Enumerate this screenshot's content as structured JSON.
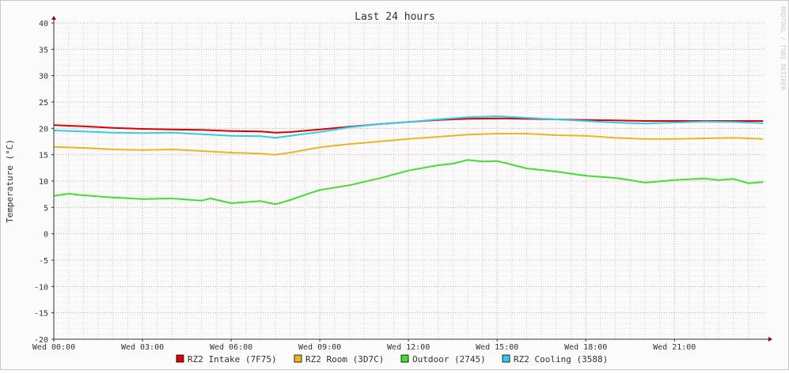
{
  "chart_data": {
    "type": "line",
    "title": "Last 24 hours",
    "ylabel": "Temperature (°C)",
    "watermark": "RRDTOOL / TOBI OETIKER",
    "ylim": [
      -20,
      40
    ],
    "yticks": [
      -20,
      -15,
      -10,
      -5,
      0,
      5,
      10,
      15,
      20,
      25,
      30,
      35,
      40
    ],
    "y_minor_step": 1,
    "xlim_hours": [
      0,
      24.1
    ],
    "xticks": [
      {
        "hour": 0,
        "label": "Wed 00:00"
      },
      {
        "hour": 3,
        "label": "Wed 03:00"
      },
      {
        "hour": 6,
        "label": "Wed 06:00"
      },
      {
        "hour": 9,
        "label": "Wed 09:00"
      },
      {
        "hour": 12,
        "label": "Wed 12:00"
      },
      {
        "hour": 15,
        "label": "Wed 15:00"
      },
      {
        "hour": 18,
        "label": "Wed 18:00"
      },
      {
        "hour": 21,
        "label": "Wed 21:00"
      }
    ],
    "x_minor_step_hours": 0.5,
    "grid": true,
    "legend_position": "bottom",
    "series": [
      {
        "name": "RZ2 Intake (7F75)",
        "color": "#dd0000",
        "x": [
          0,
          1,
          2,
          3,
          4,
          5,
          6,
          7,
          7.5,
          8,
          9,
          10,
          11,
          12,
          13,
          14,
          15,
          16,
          17,
          18,
          19,
          20,
          21,
          22,
          23,
          24
        ],
        "values": [
          20.6,
          20.4,
          20.1,
          19.9,
          19.8,
          19.7,
          19.5,
          19.4,
          19.2,
          19.3,
          19.8,
          20.3,
          20.8,
          21.2,
          21.6,
          21.8,
          21.9,
          21.8,
          21.7,
          21.6,
          21.5,
          21.4,
          21.4,
          21.4,
          21.4,
          21.4
        ]
      },
      {
        "name": "RZ2 Room (3D7C)",
        "color": "#e8b820",
        "x": [
          0,
          1,
          2,
          3,
          4,
          5,
          6,
          7,
          7.5,
          8,
          9,
          10,
          11,
          12,
          13,
          14,
          15,
          16,
          17,
          18,
          19,
          20,
          21,
          22,
          23,
          24
        ],
        "values": [
          16.5,
          16.3,
          16.0,
          15.9,
          16.0,
          15.7,
          15.4,
          15.2,
          15.0,
          15.4,
          16.4,
          17.0,
          17.5,
          18.0,
          18.4,
          18.8,
          19.0,
          19.0,
          18.7,
          18.6,
          18.2,
          18.0,
          18.0,
          18.1,
          18.2,
          18.0
        ]
      },
      {
        "name": "Outdoor (2745)",
        "color": "#44dd33",
        "x": [
          0,
          0.5,
          1,
          2,
          3,
          4,
          5,
          5.3,
          6,
          7,
          7.5,
          8,
          8.5,
          9,
          10,
          11,
          12,
          13,
          13.5,
          14,
          14.5,
          15,
          15.3,
          16,
          17,
          18,
          19,
          19.5,
          20,
          21,
          22,
          22.5,
          23,
          23.5,
          24
        ],
        "values": [
          7.2,
          7.6,
          7.3,
          6.9,
          6.6,
          6.7,
          6.3,
          6.7,
          5.8,
          6.2,
          5.6,
          6.4,
          7.4,
          8.3,
          9.2,
          10.5,
          12.0,
          13.0,
          13.3,
          14.0,
          13.7,
          13.8,
          13.4,
          12.4,
          11.8,
          11.0,
          10.6,
          10.2,
          9.7,
          10.2,
          10.5,
          10.2,
          10.4,
          9.6,
          9.8
        ]
      },
      {
        "name": "RZ2 Cooling (3588)",
        "color": "#33ccee",
        "x": [
          0,
          1,
          2,
          3,
          4,
          5,
          6,
          7,
          7.5,
          8,
          9,
          10,
          11,
          12,
          13,
          14,
          15,
          16,
          17,
          18,
          19,
          20,
          21,
          22,
          23,
          24
        ],
        "values": [
          19.6,
          19.4,
          19.2,
          19.1,
          19.2,
          18.9,
          18.6,
          18.5,
          18.2,
          18.6,
          19.3,
          20.2,
          20.8,
          21.2,
          21.7,
          22.1,
          22.3,
          22.0,
          21.7,
          21.4,
          21.1,
          20.9,
          21.1,
          21.3,
          21.2,
          21.0
        ]
      }
    ]
  }
}
